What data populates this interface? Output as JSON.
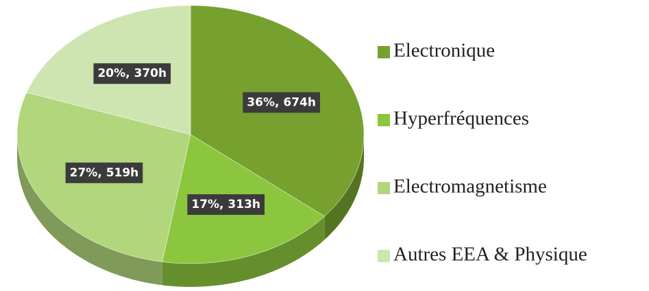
{
  "chart_data": {
    "type": "pie",
    "categories": [
      "Electronique",
      "Hyperfréquences",
      "Electromagnetisme",
      "Autres EEA & Physique"
    ],
    "values": [
      674,
      313,
      519,
      370
    ],
    "value_labels": [
      "36%, 674h",
      "17%, 313h",
      "27%, 519h",
      "20%, 370h"
    ],
    "colors": [
      "#76a12f",
      "#8cc63e",
      "#b1d67c",
      "#cfe5b1"
    ],
    "legend": "right"
  }
}
